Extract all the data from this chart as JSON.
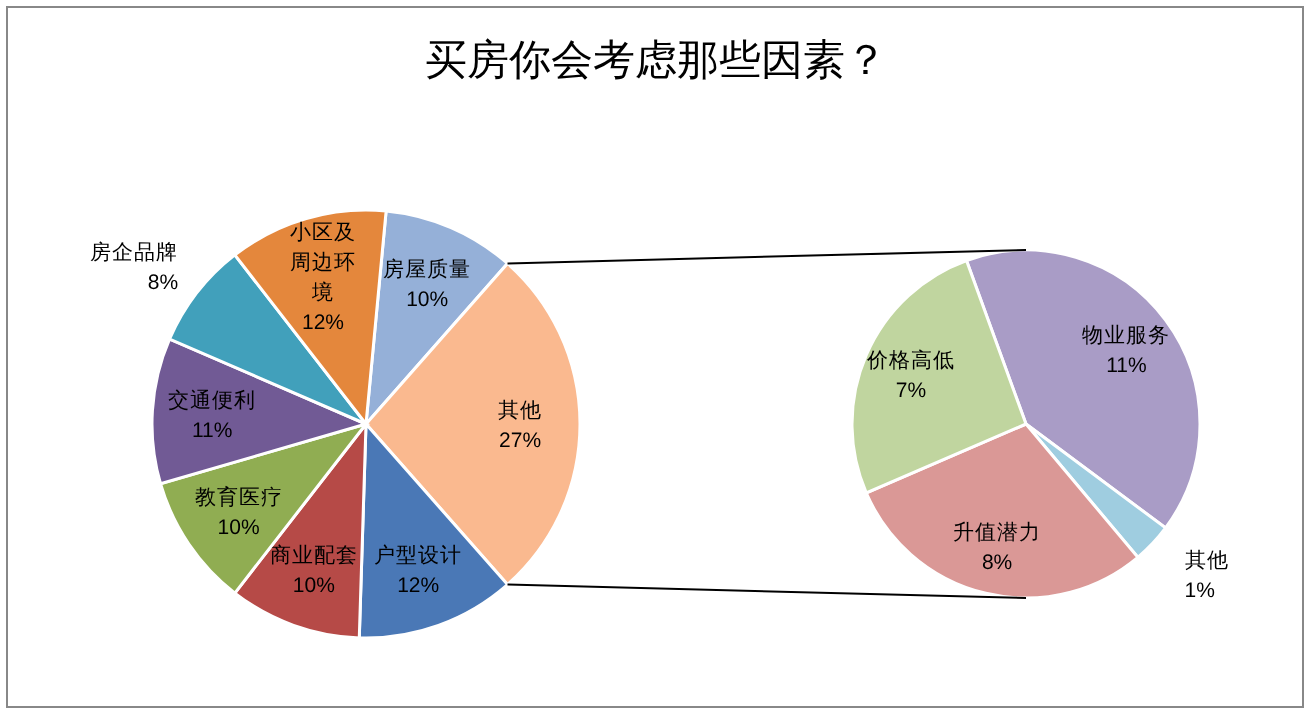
{
  "chart_data": [
    {
      "type": "pie",
      "title": "买房你会考虑那些因素？",
      "categories": [
        "房屋质量",
        "其他",
        "户型设计",
        "商业配套",
        "教育医疗",
        "交通便利",
        "房企品牌",
        "小区及周边环境"
      ],
      "values": [
        10,
        27,
        12,
        10,
        10,
        11,
        8,
        12
      ],
      "value_labels": [
        "10%",
        "27%",
        "12%",
        "10%",
        "10%",
        "11%",
        "8%",
        "12%"
      ],
      "colors": [
        "#95b0d8",
        "#fab98f",
        "#4a78b6",
        "#b64a47",
        "#90ad52",
        "#715a95",
        "#41a0bb",
        "#e4873c"
      ]
    },
    {
      "type": "pie",
      "categories": [
        "物业服务",
        "其他",
        "升值潜力",
        "价格高低"
      ],
      "values": [
        11,
        1,
        8,
        7
      ],
      "value_labels": [
        "11%",
        "1%",
        "8%",
        "7%"
      ],
      "colors": [
        "#a99cc6",
        "#9fcde0",
        "#da9896",
        "#c0d59f"
      ]
    }
  ]
}
